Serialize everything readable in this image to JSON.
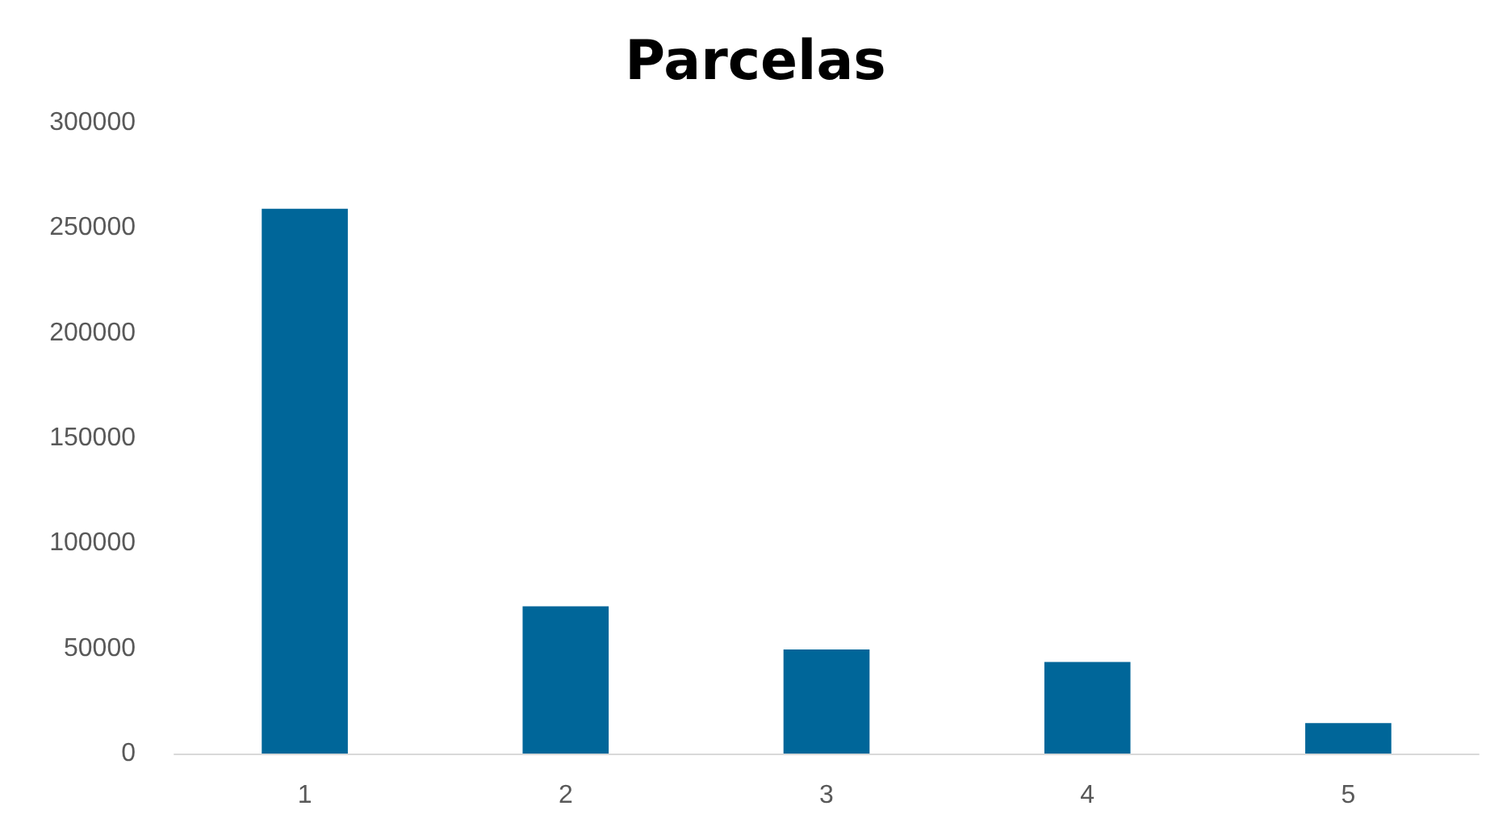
{
  "chart_data": {
    "type": "bar",
    "title": "Parcelas",
    "categories": [
      "1",
      "2",
      "3",
      "4",
      "5"
    ],
    "values": [
      259000,
      70000,
      49500,
      43500,
      14500
    ],
    "color": "#006699",
    "ylim": [
      0,
      300000
    ],
    "yticks": [
      0,
      50000,
      100000,
      150000,
      200000,
      250000,
      300000
    ],
    "grid": false
  }
}
